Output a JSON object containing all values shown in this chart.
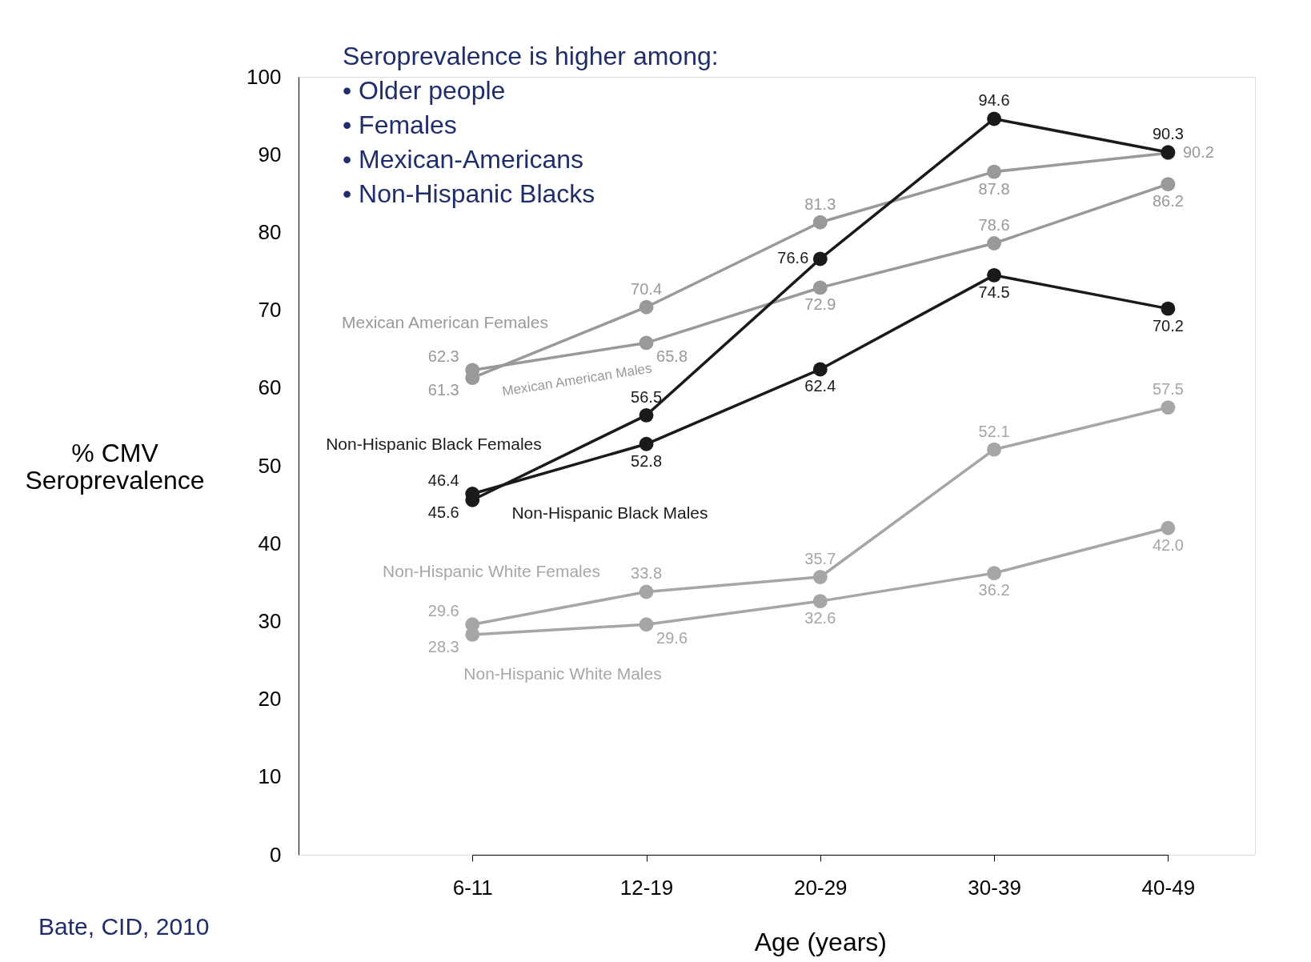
{
  "chart_data": {
    "type": "line",
    "xlabel": "Age (years)",
    "ylabel": "% CMV Seroprevalence",
    "categories": [
      "6-11",
      "12-19",
      "20-29",
      "30-39",
      "40-49"
    ],
    "series": [
      {
        "name": "Mexican American Females",
        "color": "#999999",
        "values": [
          61.3,
          70.4,
          81.3,
          87.8,
          90.2
        ],
        "value_labels": [
          "61.3",
          "70.4",
          "81.3",
          "87.8",
          "90.2"
        ]
      },
      {
        "name": "Mexican American Males",
        "color": "#999999",
        "values": [
          62.3,
          65.8,
          72.9,
          78.6,
          86.2
        ],
        "value_labels": [
          "62.3",
          "65.8",
          "72.9",
          "78.6",
          "86.2"
        ]
      },
      {
        "name": "Non-Hispanic Black Females",
        "color": "#1a1a1a",
        "values": [
          45.6,
          56.5,
          76.6,
          94.6,
          90.3
        ],
        "value_labels": [
          "45.6",
          "56.5",
          "76.6",
          "94.6",
          "90.3"
        ]
      },
      {
        "name": "Non-Hispanic Black Males",
        "color": "#1a1a1a",
        "values": [
          46.4,
          52.8,
          62.4,
          74.5,
          70.2
        ],
        "value_labels": [
          "46.4",
          "52.8",
          "62.4",
          "74.5",
          "70.2"
        ]
      },
      {
        "name": "Non-Hispanic White Females",
        "color": "#a6a6a6",
        "values": [
          29.6,
          33.8,
          35.7,
          52.1,
          57.5
        ],
        "value_labels": [
          "29.6",
          "33.8",
          "35.7",
          "52.1",
          "57.5"
        ]
      },
      {
        "name": "Non-Hispanic White Males",
        "color": "#a6a6a6",
        "values": [
          28.3,
          29.6,
          32.6,
          36.2,
          42.0
        ],
        "value_labels": [
          "28.3",
          "29.6",
          "32.6",
          "36.2",
          "42.0"
        ]
      }
    ],
    "ylim": [
      0,
      100
    ],
    "yticks": [
      0,
      10,
      20,
      30,
      40,
      50,
      60,
      70,
      80,
      90,
      100
    ],
    "grid": false,
    "marker": "circle",
    "line_style": "solid",
    "annotations": [
      "Seroprevalence is higher among:",
      "•   Older people",
      "•   Females",
      "•   Mexican-Americans",
      "•   Non-Hispanic Blacks",
      "Bate, CID, 2010"
    ]
  }
}
